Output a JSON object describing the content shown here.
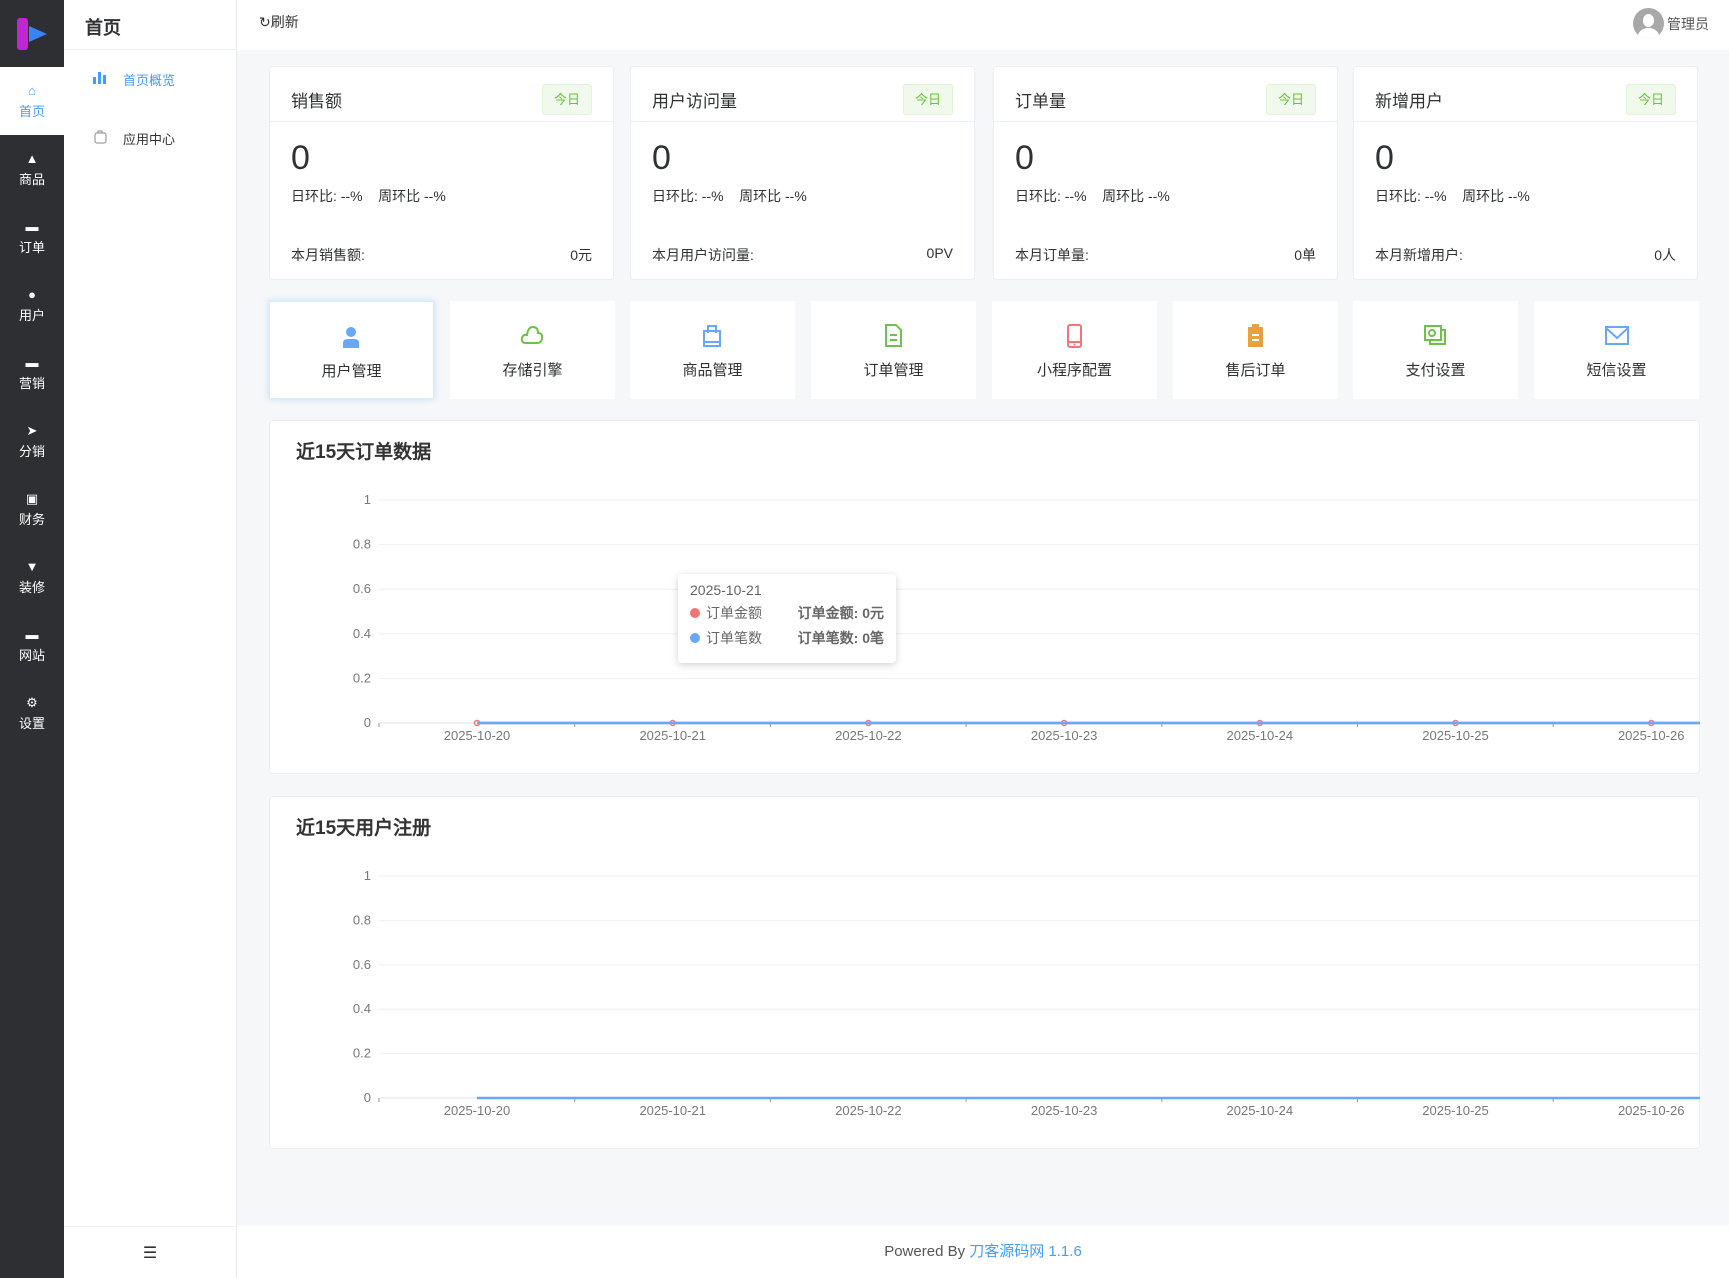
{
  "sidebar": {
    "items": [
      {
        "label": "首页",
        "icon": "home-icon"
      },
      {
        "label": "商品",
        "icon": "bag-icon"
      },
      {
        "label": "订单",
        "icon": "wallet-icon"
      },
      {
        "label": "用户",
        "icon": "user-icon"
      },
      {
        "label": "营销",
        "icon": "ticket-icon"
      },
      {
        "label": "分销",
        "icon": "send-icon"
      },
      {
        "label": "财务",
        "icon": "money-icon"
      },
      {
        "label": "装修",
        "icon": "brush-icon"
      },
      {
        "label": "网站",
        "icon": "monitor-icon"
      },
      {
        "label": "设置",
        "icon": "gear-icon"
      }
    ]
  },
  "subnav": {
    "title": "首页",
    "items": [
      {
        "label": "首页概览"
      },
      {
        "label": "应用中心"
      }
    ]
  },
  "header": {
    "refresh": "刷新",
    "user": "管理员"
  },
  "cards": [
    {
      "title": "销售额",
      "badge": "今日",
      "value": "0",
      "day": "日环比: --%",
      "week": "周环比 --%",
      "month_label": "本月销售额:",
      "month_value": "0元"
    },
    {
      "title": "用户访问量",
      "badge": "今日",
      "value": "0",
      "day": "日环比: --%",
      "week": "周环比 --%",
      "month_label": "本月用户访问量:",
      "month_value": "0PV"
    },
    {
      "title": "订单量",
      "badge": "今日",
      "value": "0",
      "day": "日环比: --%",
      "week": "周环比 --%",
      "month_label": "本月订单量:",
      "month_value": "0单"
    },
    {
      "title": "新增用户",
      "badge": "今日",
      "value": "0",
      "day": "日环比: --%",
      "week": "周环比 --%",
      "month_label": "本月新增用户:",
      "month_value": "0人"
    }
  ],
  "shortcuts": [
    {
      "label": "用户管理",
      "icon": "user-icon",
      "color": "#69a8f7"
    },
    {
      "label": "存储引擎",
      "icon": "cloud-icon",
      "color": "#6cc24a"
    },
    {
      "label": "商品管理",
      "icon": "shopping-bag-icon",
      "color": "#69a8f7"
    },
    {
      "label": "订单管理",
      "icon": "document-icon",
      "color": "#6cc24a"
    },
    {
      "label": "小程序配置",
      "icon": "phone-icon",
      "color": "#f27474"
    },
    {
      "label": "售后订单",
      "icon": "clipboard-icon",
      "color": "#e6a23c"
    },
    {
      "label": "支付设置",
      "icon": "money-icon",
      "color": "#6cc24a"
    },
    {
      "label": "短信设置",
      "icon": "mail-icon",
      "color": "#69a8f7"
    }
  ],
  "chart_data": [
    {
      "type": "line",
      "title": "近15天订单数据",
      "categories": [
        "2025-10-20",
        "2025-10-21",
        "2025-10-22",
        "2025-10-23",
        "2025-10-24",
        "2025-10-25",
        "2025-10-26"
      ],
      "ylim": [
        0,
        1
      ],
      "yticks": [
        "0",
        "0.2",
        "0.4",
        "0.6",
        "0.8",
        "1"
      ],
      "grid": true,
      "series": [
        {
          "name": "订单金额",
          "values": [
            0,
            0,
            0,
            0,
            0,
            0,
            0
          ],
          "color": "#f27474"
        },
        {
          "name": "订单笔数",
          "values": [
            0,
            0,
            0,
            0,
            0,
            0,
            0
          ],
          "color": "#69a8f7"
        }
      ],
      "tooltip": {
        "date": "2025-10-21",
        "rows": [
          {
            "name": "订单金额",
            "value": "订单金额: 0元"
          },
          {
            "name": "订单笔数",
            "value": "订单笔数: 0笔"
          }
        ]
      }
    },
    {
      "type": "line",
      "title": "近15天用户注册",
      "categories": [
        "2025-10-20",
        "2025-10-21",
        "2025-10-22",
        "2025-10-23",
        "2025-10-24",
        "2025-10-25",
        "2025-10-26"
      ],
      "ylim": [
        0,
        1
      ],
      "yticks": [
        "0",
        "0.2",
        "0.4",
        "0.6",
        "0.8",
        "1"
      ],
      "grid": true,
      "series": [
        {
          "values": [
            0,
            0,
            0,
            0,
            0,
            0,
            0
          ],
          "color": "#69a8f7"
        }
      ]
    }
  ],
  "footer": {
    "prefix": "Powered By ",
    "link": "刀客源码网 1.1.6"
  }
}
